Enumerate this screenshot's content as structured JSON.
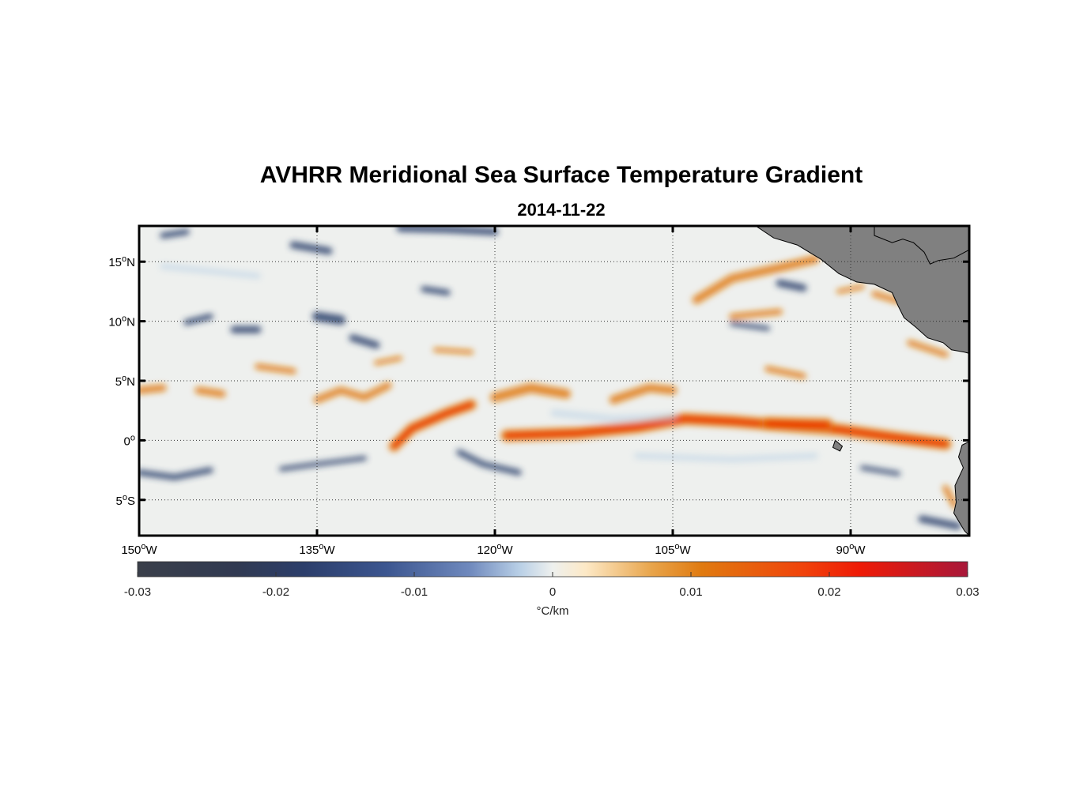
{
  "title": "AVHRR Meridional Sea Surface Temperature Gradient",
  "subtitle": "2014-11-22",
  "colors": {
    "neg_max": "#3a3f4a",
    "neg_mid": "#2c3e6b",
    "neg_low": "#b8cfe6",
    "zero": "#eef0ee",
    "pos_low": "#fde9c6",
    "pos_mid": "#e07a10",
    "pos_high": "#ee1a06",
    "pos_max": "#a8183a",
    "land": "#808080"
  },
  "map": {
    "lon_range": [
      -150,
      -80
    ],
    "lat_range": [
      -8,
      18
    ],
    "lon_ticks": [
      {
        "value": -150,
        "deg": "150",
        "hem": "W"
      },
      {
        "value": -135,
        "deg": "135",
        "hem": "W"
      },
      {
        "value": -120,
        "deg": "120",
        "hem": "W"
      },
      {
        "value": -105,
        "deg": "105",
        "hem": "W"
      },
      {
        "value": -90,
        "deg": "90",
        "hem": "W"
      }
    ],
    "lat_ticks": [
      {
        "value": 15,
        "deg": "15",
        "hem": "N"
      },
      {
        "value": 10,
        "deg": "10",
        "hem": "N"
      },
      {
        "value": 5,
        "deg": "5",
        "hem": "N"
      },
      {
        "value": 0,
        "deg": "0",
        "hem": ""
      },
      {
        "value": -5,
        "deg": "5",
        "hem": "S"
      }
    ],
    "degree_symbol": "o",
    "features": [
      {
        "type": "band",
        "kind": "pos",
        "points": [
          [
            -128.5,
            -0.5
          ],
          [
            -127,
            1
          ],
          [
            -124,
            2.3
          ],
          [
            -122,
            3.0
          ]
        ],
        "width": 0.9
      },
      {
        "type": "band",
        "kind": "pos",
        "points": [
          [
            -119,
            0.4
          ],
          [
            -113,
            0.6
          ],
          [
            -108,
            1.1
          ],
          [
            -104,
            1.8
          ],
          [
            -100,
            1.6
          ],
          [
            -95,
            1.2
          ],
          [
            -91,
            0.9
          ],
          [
            -86,
            0.2
          ],
          [
            -82,
            -0.3
          ]
        ],
        "width": 1.0
      },
      {
        "type": "band",
        "kind": "pos",
        "points": [
          [
            -120,
            3.6
          ],
          [
            -117,
            4.4
          ],
          [
            -114,
            3.9
          ]
        ],
        "width": 0.8
      },
      {
        "type": "band",
        "kind": "pos",
        "points": [
          [
            -110,
            3.4
          ],
          [
            -107,
            4.4
          ],
          [
            -105,
            4.2
          ]
        ],
        "width": 0.7
      },
      {
        "type": "band",
        "kind": "pos",
        "points": [
          [
            -135,
            3.4
          ],
          [
            -133,
            4.2
          ],
          [
            -131,
            3.6
          ],
          [
            -129,
            4.6
          ]
        ],
        "width": 0.6
      },
      {
        "type": "band",
        "kind": "pos",
        "points": [
          [
            -150,
            4.2
          ],
          [
            -148,
            4.4
          ]
        ],
        "width": 0.6
      },
      {
        "type": "band",
        "kind": "pos",
        "points": [
          [
            -145,
            4.2
          ],
          [
            -143,
            3.9
          ]
        ],
        "width": 0.6
      },
      {
        "type": "band",
        "kind": "pos",
        "points": [
          [
            -140,
            6.2
          ],
          [
            -137,
            5.8
          ]
        ],
        "width": 0.5
      },
      {
        "type": "band",
        "kind": "pos",
        "points": [
          [
            -125,
            7.6
          ],
          [
            -122,
            7.4
          ]
        ],
        "width": 0.4
      },
      {
        "type": "band",
        "kind": "pos",
        "points": [
          [
            -130,
            6.5
          ],
          [
            -128,
            6.9
          ]
        ],
        "width": 0.4
      },
      {
        "type": "band",
        "kind": "pos",
        "points": [
          [
            -103,
            11.8
          ],
          [
            -100,
            13.6
          ],
          [
            -96,
            14.5
          ],
          [
            -93,
            15.2
          ]
        ],
        "width": 0.7
      },
      {
        "type": "band",
        "kind": "pos",
        "points": [
          [
            -100,
            10.4
          ],
          [
            -96,
            10.8
          ]
        ],
        "width": 0.5
      },
      {
        "type": "band",
        "kind": "pos",
        "points": [
          [
            -88,
            12.3
          ],
          [
            -86,
            11.7
          ]
        ],
        "width": 0.5
      },
      {
        "type": "band",
        "kind": "pos",
        "points": [
          [
            -85,
            8.2
          ],
          [
            -82,
            7.2
          ]
        ],
        "width": 0.5
      },
      {
        "type": "band",
        "kind": "pos",
        "points": [
          [
            -91,
            12.5
          ],
          [
            -89,
            12.9
          ]
        ],
        "width": 0.4
      },
      {
        "type": "band",
        "kind": "pos",
        "points": [
          [
            -97,
            6.0
          ],
          [
            -94,
            5.4
          ]
        ],
        "width": 0.5
      },
      {
        "type": "band",
        "kind": "pos",
        "points": [
          [
            -97,
            1.4
          ],
          [
            -92,
            1.3
          ]
        ],
        "width": 1.1
      },
      {
        "type": "band",
        "kind": "pos",
        "points": [
          [
            -82,
            -4.0
          ],
          [
            -81.2,
            -5.5
          ]
        ],
        "width": 0.5
      },
      {
        "type": "band",
        "kind": "neg",
        "points": [
          [
            -148,
            17.2
          ],
          [
            -146,
            17.5
          ]
        ],
        "width": 0.5
      },
      {
        "type": "band",
        "kind": "neg",
        "points": [
          [
            -137,
            16.4
          ],
          [
            -134,
            15.9
          ]
        ],
        "width": 0.6
      },
      {
        "type": "band",
        "kind": "neg",
        "points": [
          [
            -128,
            17.8
          ],
          [
            -124,
            17.7
          ],
          [
            -120,
            17.5
          ]
        ],
        "width": 0.6
      },
      {
        "type": "band",
        "kind": "neg",
        "points": [
          [
            -135,
            10.4
          ],
          [
            -133,
            10.1
          ]
        ],
        "width": 0.8
      },
      {
        "type": "band",
        "kind": "neg",
        "points": [
          [
            -132,
            8.6
          ],
          [
            -130,
            8.0
          ]
        ],
        "width": 0.6
      },
      {
        "type": "band",
        "kind": "neg",
        "points": [
          [
            -146,
            9.9
          ],
          [
            -144,
            10.4
          ]
        ],
        "width": 0.5
      },
      {
        "type": "band",
        "kind": "neg",
        "points": [
          [
            -142,
            9.3
          ],
          [
            -140,
            9.3
          ]
        ],
        "width": 0.6
      },
      {
        "type": "band",
        "kind": "neg",
        "points": [
          [
            -126,
            12.7
          ],
          [
            -124,
            12.4
          ]
        ],
        "width": 0.5
      },
      {
        "type": "band",
        "kind": "neg",
        "points": [
          [
            -150,
            -2.7
          ],
          [
            -147,
            -3.1
          ],
          [
            -144,
            -2.5
          ]
        ],
        "width": 0.5
      },
      {
        "type": "band",
        "kind": "neg",
        "points": [
          [
            -138,
            -2.4
          ],
          [
            -135,
            -2.0
          ],
          [
            -131,
            -1.5
          ]
        ],
        "width": 0.4
      },
      {
        "type": "band",
        "kind": "neg",
        "points": [
          [
            -123,
            -1.0
          ],
          [
            -121,
            -2.0
          ],
          [
            -118,
            -2.7
          ]
        ],
        "width": 0.5
      },
      {
        "type": "band",
        "kind": "neg",
        "points": [
          [
            -96,
            13.2
          ],
          [
            -94,
            12.8
          ]
        ],
        "width": 0.6
      },
      {
        "type": "band",
        "kind": "neg",
        "points": [
          [
            -100,
            9.8
          ],
          [
            -97,
            9.4
          ]
        ],
        "width": 0.4
      },
      {
        "type": "band",
        "kind": "neg",
        "points": [
          [
            -84,
            -6.6
          ],
          [
            -81,
            -7.2
          ]
        ],
        "width": 0.6
      },
      {
        "type": "band",
        "kind": "neg",
        "points": [
          [
            -89,
            -2.3
          ],
          [
            -86,
            -2.8
          ]
        ],
        "width": 0.3
      },
      {
        "type": "band",
        "kind": "neglight",
        "points": [
          [
            -115,
            2.3
          ],
          [
            -110,
            1.8
          ],
          [
            -105,
            2.0
          ]
        ],
        "width": 0.6
      },
      {
        "type": "band",
        "kind": "neglight",
        "points": [
          [
            -108,
            -1.3
          ],
          [
            -100,
            -1.6
          ],
          [
            -93,
            -1.3
          ]
        ],
        "width": 0.5
      },
      {
        "type": "band",
        "kind": "neglight",
        "points": [
          [
            -148,
            14.6
          ],
          [
            -140,
            13.8
          ]
        ],
        "width": 0.5
      }
    ],
    "land": [
      {
        "name": "central-america",
        "points": [
          [
            -98,
            18
          ],
          [
            -96.5,
            17
          ],
          [
            -94.5,
            16.4
          ],
          [
            -92.5,
            15.2
          ],
          [
            -91,
            14
          ],
          [
            -89.5,
            13.3
          ],
          [
            -88,
            13.1
          ],
          [
            -86.5,
            12.4
          ],
          [
            -86,
            11.3
          ],
          [
            -85.5,
            10.3
          ],
          [
            -84.5,
            9.5
          ],
          [
            -83.5,
            8.6
          ],
          [
            -82.2,
            8.2
          ],
          [
            -81.5,
            7.6
          ],
          [
            -80.4,
            7.4
          ],
          [
            -80,
            7.3
          ],
          [
            -80,
            18
          ],
          [
            -88,
            18
          ],
          [
            -88,
            17.2
          ],
          [
            -86.5,
            16.6
          ],
          [
            -85.6,
            16.9
          ],
          [
            -84.7,
            16.6
          ],
          [
            -83.8,
            15.8
          ],
          [
            -83.3,
            14.8
          ],
          [
            -82.6,
            15.1
          ],
          [
            -81.3,
            15.3
          ],
          [
            -80,
            16
          ],
          [
            -80,
            18
          ]
        ]
      },
      {
        "name": "south-america",
        "points": [
          [
            -80,
            -0.1
          ],
          [
            -80.6,
            -0.4
          ],
          [
            -80.9,
            -1.4
          ],
          [
            -80.5,
            -2.3
          ],
          [
            -81.2,
            -3.8
          ],
          [
            -81.1,
            -5.2
          ],
          [
            -81.3,
            -6.1
          ],
          [
            -80.4,
            -7.6
          ],
          [
            -80,
            -8
          ],
          [
            -80,
            -0.1
          ]
        ]
      },
      {
        "name": "galapagos",
        "points": [
          [
            -91.3,
            0.0
          ],
          [
            -90.7,
            -0.5
          ],
          [
            -90.9,
            -0.9
          ],
          [
            -91.5,
            -0.6
          ],
          [
            -91.3,
            0.0
          ]
        ]
      }
    ]
  },
  "colorbar": {
    "min": -0.03,
    "max": 0.03,
    "tick_labels": [
      "-0.03",
      "-0.02",
      "-0.01",
      "0",
      "0.01",
      "0.02",
      "0.03"
    ],
    "tick_values": [
      -0.03,
      -0.02,
      -0.01,
      0,
      0.01,
      0.02,
      0.03
    ],
    "unit_label": "°C/km"
  }
}
